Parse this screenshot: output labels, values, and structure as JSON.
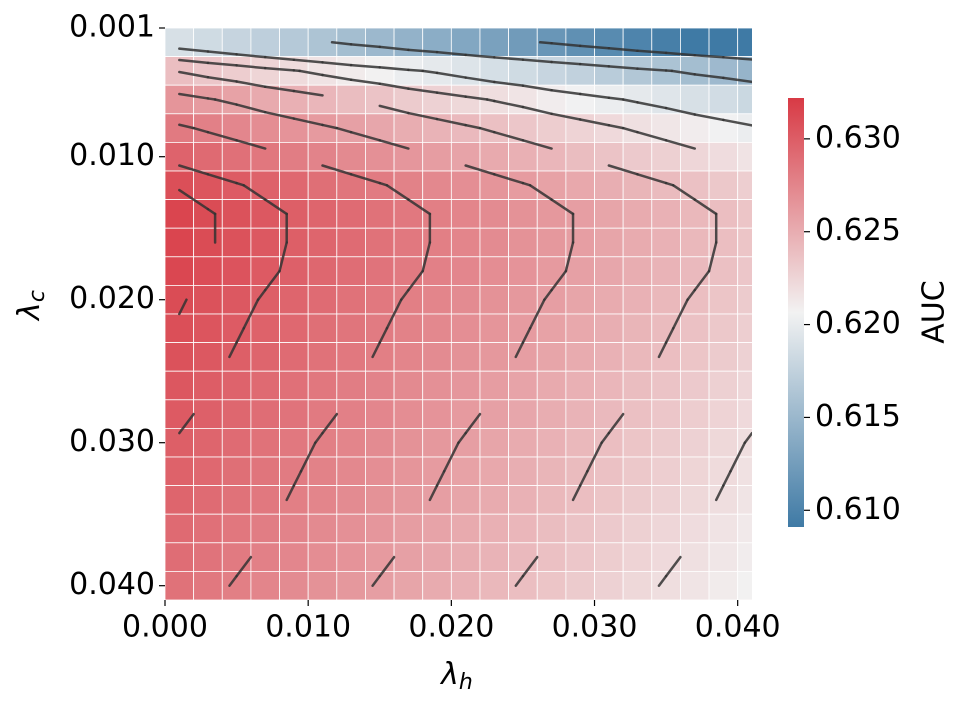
{
  "chart_data": {
    "type": "heatmap",
    "x": [
      0,
      0.002,
      0.004,
      0.006,
      0.008,
      0.01,
      0.012,
      0.014,
      0.016,
      0.018,
      0.02,
      0.022,
      0.024,
      0.026,
      0.028,
      0.03,
      0.032,
      0.034,
      0.036,
      0.038,
      0.04
    ],
    "y": [
      0.001,
      0.003,
      0.005,
      0.007,
      0.009,
      0.011,
      0.013,
      0.015,
      0.017,
      0.019,
      0.021,
      0.023,
      0.025,
      0.027,
      0.029,
      0.031,
      0.033,
      0.035,
      0.037,
      0.039
    ],
    "z": [
      [
        0.6189,
        0.6184,
        0.6178,
        0.6173,
        0.6167,
        0.6162,
        0.6156,
        0.6151,
        0.6145,
        0.614,
        0.6134,
        0.6129,
        0.6123,
        0.6118,
        0.6112,
        0.6107,
        0.6101,
        0.6096,
        0.609,
        0.6085,
        0.6079
      ],
      [
        0.6239,
        0.6234,
        0.623,
        0.6225,
        0.6221,
        0.6216,
        0.6211,
        0.6207,
        0.6202,
        0.6198,
        0.6193,
        0.6188,
        0.6184,
        0.6179,
        0.6175,
        0.617,
        0.6165,
        0.6161,
        0.6156,
        0.6152,
        0.6147
      ],
      [
        0.6265,
        0.6261,
        0.6257,
        0.6252,
        0.6248,
        0.6244,
        0.624,
        0.6236,
        0.6231,
        0.6227,
        0.6223,
        0.6219,
        0.6215,
        0.621,
        0.6206,
        0.6202,
        0.6198,
        0.6194,
        0.6189,
        0.6185,
        0.6181
      ],
      [
        0.6282,
        0.6278,
        0.6274,
        0.627,
        0.6266,
        0.6262,
        0.6258,
        0.6254,
        0.625,
        0.6246,
        0.6242,
        0.6238,
        0.6234,
        0.623,
        0.6226,
        0.6222,
        0.6218,
        0.6214,
        0.621,
        0.6206,
        0.6202
      ],
      [
        0.6296,
        0.6292,
        0.6288,
        0.6284,
        0.628,
        0.6276,
        0.6272,
        0.6268,
        0.6264,
        0.626,
        0.6256,
        0.6252,
        0.6248,
        0.6244,
        0.624,
        0.6236,
        0.6232,
        0.6228,
        0.6224,
        0.622,
        0.6216
      ],
      [
        0.6309,
        0.6305,
        0.6301,
        0.6297,
        0.6293,
        0.6289,
        0.6285,
        0.6281,
        0.6277,
        0.6273,
        0.6269,
        0.6265,
        0.6261,
        0.6257,
        0.6253,
        0.6249,
        0.6245,
        0.6241,
        0.6237,
        0.6233,
        0.6229
      ],
      [
        0.6315,
        0.6311,
        0.6307,
        0.6303,
        0.6299,
        0.6295,
        0.6291,
        0.6287,
        0.6283,
        0.6279,
        0.6275,
        0.6271,
        0.6267,
        0.6263,
        0.6259,
        0.6255,
        0.6251,
        0.6247,
        0.6243,
        0.6239,
        0.6235
      ],
      [
        0.6315,
        0.6311,
        0.6307,
        0.6303,
        0.6299,
        0.6295,
        0.6291,
        0.6287,
        0.6283,
        0.6279,
        0.6275,
        0.6271,
        0.6267,
        0.6263,
        0.6259,
        0.6255,
        0.6251,
        0.6247,
        0.6243,
        0.6239,
        0.6235
      ],
      [
        0.6314,
        0.631,
        0.6306,
        0.6302,
        0.6298,
        0.6294,
        0.629,
        0.6286,
        0.6282,
        0.6278,
        0.6274,
        0.627,
        0.6266,
        0.6262,
        0.6258,
        0.6254,
        0.625,
        0.6246,
        0.6242,
        0.6238,
        0.6234
      ],
      [
        0.6311,
        0.6307,
        0.6303,
        0.6299,
        0.6295,
        0.6291,
        0.6287,
        0.6283,
        0.6279,
        0.6275,
        0.6271,
        0.6267,
        0.6263,
        0.6259,
        0.6255,
        0.6251,
        0.6247,
        0.6243,
        0.6239,
        0.6235,
        0.6231
      ],
      [
        0.6309,
        0.6305,
        0.6301,
        0.6297,
        0.6293,
        0.6289,
        0.6285,
        0.6281,
        0.6277,
        0.6273,
        0.6269,
        0.6265,
        0.6261,
        0.6257,
        0.6253,
        0.6249,
        0.6245,
        0.6241,
        0.6237,
        0.6233,
        0.6229
      ],
      [
        0.6307,
        0.6303,
        0.6299,
        0.6295,
        0.6291,
        0.6287,
        0.6283,
        0.6279,
        0.6275,
        0.6271,
        0.6267,
        0.6263,
        0.6259,
        0.6255,
        0.6251,
        0.6247,
        0.6243,
        0.6239,
        0.6235,
        0.6231,
        0.6227
      ],
      [
        0.6304,
        0.63,
        0.6296,
        0.6292,
        0.6288,
        0.6284,
        0.628,
        0.6276,
        0.6272,
        0.6268,
        0.6264,
        0.626,
        0.6256,
        0.6252,
        0.6248,
        0.6244,
        0.624,
        0.6236,
        0.6232,
        0.6228,
        0.6224
      ],
      [
        0.6302,
        0.6298,
        0.6294,
        0.629,
        0.6286,
        0.6282,
        0.6278,
        0.6274,
        0.627,
        0.6266,
        0.6262,
        0.6258,
        0.6254,
        0.625,
        0.6246,
        0.6242,
        0.6238,
        0.6234,
        0.623,
        0.6226,
        0.6222
      ],
      [
        0.6299,
        0.6295,
        0.6291,
        0.6287,
        0.6283,
        0.6279,
        0.6275,
        0.6271,
        0.6267,
        0.6263,
        0.6259,
        0.6255,
        0.6251,
        0.6247,
        0.6243,
        0.6239,
        0.6235,
        0.6231,
        0.6227,
        0.6223,
        0.6219
      ],
      [
        0.6297,
        0.6293,
        0.6289,
        0.6285,
        0.6281,
        0.6277,
        0.6273,
        0.6269,
        0.6265,
        0.6261,
        0.6257,
        0.6253,
        0.6249,
        0.6245,
        0.6241,
        0.6237,
        0.6233,
        0.6229,
        0.6225,
        0.6221,
        0.6217
      ],
      [
        0.6295,
        0.6291,
        0.6287,
        0.6283,
        0.6279,
        0.6275,
        0.6271,
        0.6267,
        0.6263,
        0.6259,
        0.6255,
        0.6251,
        0.6247,
        0.6243,
        0.6239,
        0.6235,
        0.6231,
        0.6227,
        0.6223,
        0.6219,
        0.6215
      ],
      [
        0.6292,
        0.6288,
        0.6284,
        0.628,
        0.6276,
        0.6272,
        0.6268,
        0.6264,
        0.626,
        0.6256,
        0.6252,
        0.6248,
        0.6244,
        0.624,
        0.6236,
        0.6232,
        0.6228,
        0.6224,
        0.622,
        0.6216,
        0.6212
      ],
      [
        0.629,
        0.6286,
        0.6282,
        0.6278,
        0.6274,
        0.627,
        0.6266,
        0.6262,
        0.6258,
        0.6254,
        0.625,
        0.6246,
        0.6242,
        0.6238,
        0.6234,
        0.623,
        0.6226,
        0.6222,
        0.6218,
        0.6214,
        0.621
      ],
      [
        0.6287,
        0.6283,
        0.6279,
        0.6275,
        0.6271,
        0.6267,
        0.6263,
        0.6259,
        0.6255,
        0.6251,
        0.6247,
        0.6243,
        0.6239,
        0.6235,
        0.6231,
        0.6227,
        0.6223,
        0.6219,
        0.6215,
        0.6211,
        0.6207
      ]
    ],
    "xlim": [
      0,
      0.041
    ],
    "ylim": [
      0.001,
      0.041
    ],
    "xticks": [
      {
        "value": 0,
        "label": "0.000"
      },
      {
        "value": 0.01,
        "label": "0.010"
      },
      {
        "value": 0.02,
        "label": "0.020"
      },
      {
        "value": 0.03,
        "label": "0.030"
      },
      {
        "value": 0.04,
        "label": "0.040"
      }
    ],
    "yticks": [
      {
        "value": 0.001,
        "label": "0.001"
      },
      {
        "value": 0.01,
        "label": "0.010"
      },
      {
        "value": 0.02,
        "label": "0.020"
      },
      {
        "value": 0.03,
        "label": "0.030"
      },
      {
        "value": 0.04,
        "label": "0.040"
      }
    ],
    "xlabel": {
      "symbol": "λ",
      "subscript": "h"
    },
    "ylabel": {
      "symbol": "λ",
      "subscript": "c"
    },
    "colorbar": {
      "label": "AUC",
      "clim": [
        0.6091,
        0.6322
      ],
      "colors": [
        "#3f7aa5",
        "#f2f2f2",
        "#d83a45"
      ],
      "ticks": [
        {
          "value": 0.61,
          "label": "0.610"
        },
        {
          "value": 0.615,
          "label": "0.615"
        },
        {
          "value": 0.62,
          "label": "0.620"
        },
        {
          "value": 0.625,
          "label": "0.625"
        },
        {
          "value": 0.63,
          "label": "0.630"
        }
      ]
    },
    "contour_levels": [
      0.612,
      0.616,
      0.62,
      0.622,
      0.624,
      0.626,
      0.628,
      0.63,
      0.631
    ],
    "contour_color": "#333333"
  }
}
